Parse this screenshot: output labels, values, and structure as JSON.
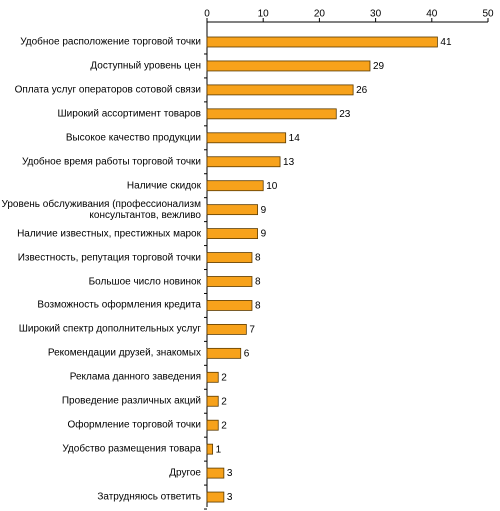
{
  "chart_data": {
    "type": "bar",
    "orientation": "horizontal",
    "color": "#f7a21b",
    "categories": [
      "Удобное расположение торговой точки",
      "Доступный уровень цен",
      "Оплата услуг операторов сотовой связи",
      "Широкий ассортимент товаров",
      "Высокое качество продукции",
      "Удобное время работы торговой точки",
      "Наличие скидок",
      "Уровень обслуживания (профессионализм консультантов, вежливо",
      "Наличие известных, престижных марок",
      "Известность, репутация торговой точки",
      "Большое число новинок",
      "Возможность оформления кредита",
      "Широкий спектр дополнительных услуг",
      "Рекомендации друзей, знакомых",
      "Реклама данного заведения",
      "Проведение различных акций",
      "Оформление торговой точки",
      "Удобство размещения товара",
      "Другое",
      "Затрудняюсь ответить"
    ],
    "values": [
      41,
      29,
      26,
      23,
      14,
      13,
      10,
      9,
      9,
      8,
      8,
      8,
      7,
      6,
      2,
      2,
      2,
      1,
      3,
      3
    ],
    "xlim": [
      0,
      50
    ],
    "xticks": [
      0,
      10,
      20,
      30,
      40,
      50
    ]
  }
}
